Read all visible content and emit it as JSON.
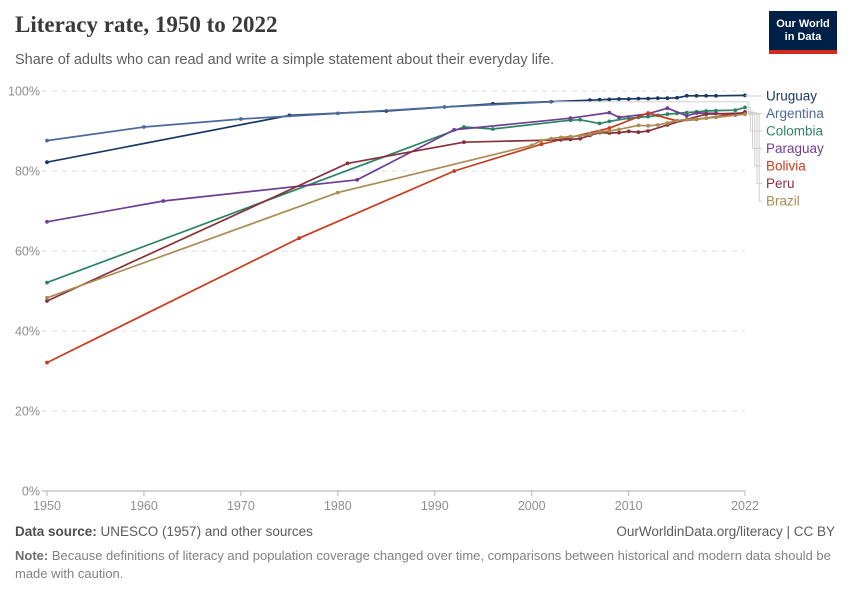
{
  "header": {
    "title": "Literacy rate, 1950 to 2022",
    "subtitle": "Share of adults who can read and write a simple statement about their everyday life.",
    "logo": {
      "line1": "Our World",
      "line2": "in Data"
    }
  },
  "chart_data": {
    "type": "line",
    "title": "Literacy rate, 1950 to 2022",
    "xlabel": "",
    "ylabel": "",
    "x_range": [
      1950,
      2022
    ],
    "y_range": [
      0,
      100
    ],
    "x_ticks": [
      1950,
      1960,
      1970,
      1980,
      1990,
      2000,
      2010,
      2022
    ],
    "y_ticks": [
      0,
      20,
      40,
      60,
      80,
      100
    ],
    "y_tick_suffix": "%",
    "grid": "dashed-horizontal",
    "legend_position": "right",
    "series": [
      {
        "name": "Uruguay",
        "color": "#193864",
        "points": [
          [
            1950,
            82.2
          ],
          [
            1975,
            93.9
          ],
          [
            1985,
            95.0
          ],
          [
            1996,
            96.8
          ],
          [
            2006,
            97.7
          ],
          [
            2007,
            97.8
          ],
          [
            2008,
            97.9
          ],
          [
            2009,
            98.0
          ],
          [
            2010,
            98.0
          ],
          [
            2011,
            98.1
          ],
          [
            2012,
            98.1
          ],
          [
            2013,
            98.2
          ],
          [
            2014,
            98.2
          ],
          [
            2015,
            98.3
          ],
          [
            2016,
            98.8
          ],
          [
            2017,
            98.8
          ],
          [
            2018,
            98.8
          ],
          [
            2019,
            98.8
          ],
          [
            2022,
            98.9
          ]
        ]
      },
      {
        "name": "Argentina",
        "color": "#4C6A9C",
        "points": [
          [
            1950,
            87.6
          ],
          [
            1960,
            91.0
          ],
          [
            1970,
            93.0
          ],
          [
            1980,
            94.4
          ],
          [
            1991,
            96.0
          ],
          [
            2002,
            97.3
          ]
        ]
      },
      {
        "name": "Colombia",
        "color": "#2C8465",
        "points": [
          [
            1950,
            52.1
          ],
          [
            1993,
            91.0
          ],
          [
            1996,
            90.5
          ],
          [
            2004,
            92.7
          ],
          [
            2005,
            92.8
          ],
          [
            2007,
            91.9
          ],
          [
            2008,
            92.4
          ],
          [
            2010,
            93.2
          ],
          [
            2011,
            93.4
          ],
          [
            2012,
            93.6
          ],
          [
            2013,
            93.9
          ],
          [
            2014,
            94.2
          ],
          [
            2015,
            94.4
          ],
          [
            2016,
            94.6
          ],
          [
            2017,
            94.8
          ],
          [
            2018,
            95.0
          ],
          [
            2019,
            95.1
          ],
          [
            2021,
            95.2
          ],
          [
            2022,
            95.9
          ]
        ]
      },
      {
        "name": "Paraguay",
        "color": "#6D3E91",
        "points": [
          [
            1950,
            67.3
          ],
          [
            1962,
            72.5
          ],
          [
            1982,
            77.8
          ],
          [
            1992,
            90.3
          ],
          [
            2004,
            93.2
          ],
          [
            2008,
            94.6
          ],
          [
            2009,
            93.4
          ],
          [
            2012,
            94.3
          ],
          [
            2014,
            95.7
          ],
          [
            2016,
            93.8
          ],
          [
            2017,
            94.5
          ],
          [
            2019,
            94.4
          ],
          [
            2021,
            94.0
          ],
          [
            2022,
            94.8
          ]
        ]
      },
      {
        "name": "Bolivia",
        "color": "#C83C1E",
        "points": [
          [
            1950,
            32.1
          ],
          [
            1976,
            63.2
          ],
          [
            1992,
            80.0
          ],
          [
            2001,
            86.7
          ],
          [
            2008,
            90.7
          ],
          [
            2012,
            94.5
          ],
          [
            2015,
            92.5
          ],
          [
            2017,
            92.9
          ],
          [
            2020,
            93.9
          ],
          [
            2022,
            94.6
          ]
        ]
      },
      {
        "name": "Peru",
        "color": "#883039",
        "points": [
          [
            1950,
            47.5
          ],
          [
            1981,
            81.9
          ],
          [
            1993,
            87.2
          ],
          [
            2003,
            87.8
          ],
          [
            2004,
            87.9
          ],
          [
            2005,
            88.1
          ],
          [
            2006,
            88.9
          ],
          [
            2007,
            89.6
          ],
          [
            2008,
            89.5
          ],
          [
            2009,
            89.6
          ],
          [
            2010,
            89.9
          ],
          [
            2011,
            89.7
          ],
          [
            2012,
            90.0
          ],
          [
            2014,
            91.5
          ],
          [
            2016,
            92.9
          ],
          [
            2018,
            94.2
          ],
          [
            2022,
            94.5
          ]
        ]
      },
      {
        "name": "Brazil",
        "color": "#AA8C55",
        "points": [
          [
            1950,
            48.3
          ],
          [
            1980,
            74.6
          ],
          [
            2000,
            86.4
          ],
          [
            2001,
            87.6
          ],
          [
            2002,
            88.1
          ],
          [
            2003,
            88.4
          ],
          [
            2004,
            88.6
          ],
          [
            2005,
            88.8
          ],
          [
            2006,
            89.2
          ],
          [
            2007,
            89.8
          ],
          [
            2008,
            90.0
          ],
          [
            2009,
            90.4
          ],
          [
            2011,
            91.4
          ],
          [
            2012,
            91.3
          ],
          [
            2013,
            91.5
          ],
          [
            2014,
            92.0
          ],
          [
            2015,
            92.6
          ],
          [
            2016,
            92.9
          ],
          [
            2017,
            93.0
          ],
          [
            2018,
            93.2
          ],
          [
            2019,
            93.4
          ],
          [
            2022,
            94.2
          ]
        ]
      }
    ]
  },
  "footer": {
    "source_label": "Data source:",
    "source_text": " UNESCO (1957) and other sources",
    "link": "OurWorldinData.org/literacy | CC BY",
    "note_label": "Note:",
    "note_text": " Because definitions of literacy and population coverage changed over time, comparisons between historical and modern data should be made with caution."
  }
}
